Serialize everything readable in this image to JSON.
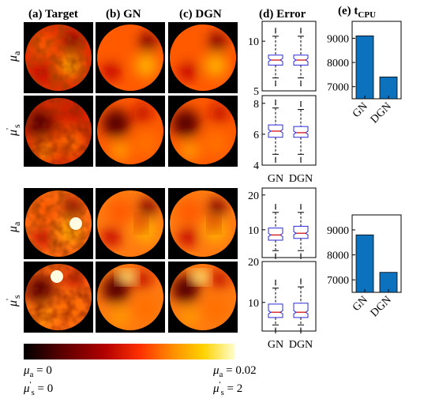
{
  "panels": {
    "target": "(a) Target",
    "gn": "(b) GN",
    "dgn": "(c) DGN",
    "error": "(d) Error",
    "tcpu_main": "(e) t",
    "tcpu_sub": "CPU"
  },
  "row_labels": {
    "mua": "μ",
    "mua_sub": "a",
    "mus": "μ",
    "mus_prime": "'",
    "mus_sub": "s"
  },
  "colorbar": {
    "min_mua": "μ",
    "min_mua_sub": "a",
    "min_mua_val": " = 0",
    "min_mus": "μ",
    "min_mus_prime": "'",
    "min_mus_sub": "s",
    "min_mus_val": " = 0",
    "max_mua": "μ",
    "max_mua_sub": "a",
    "max_mua_val": " = 0.02",
    "max_mus": "μ",
    "max_mus_prime": "'",
    "max_mus_sub": "s",
    "max_mus_val": " = 2",
    "colors": [
      "#000000",
      "#5a0000",
      "#b00000",
      "#ff3000",
      "#ff8c00",
      "#ffd200",
      "#ffffd0"
    ]
  },
  "chart_data": [
    {
      "type": "boxplot",
      "panel": "(d) Error top, μa",
      "categories": [
        "GN",
        "DGN"
      ],
      "ylim": [
        5,
        12
      ],
      "yticks": [
        5,
        10
      ],
      "series": [
        {
          "values": {
            "min": 6.3,
            "q1": 7.6,
            "median": 8.1,
            "q3": 8.6,
            "max": 10.5
          }
        },
        {
          "values": {
            "min": 6.3,
            "q1": 7.6,
            "median": 8.1,
            "q3": 8.6,
            "max": 10.5
          }
        }
      ]
    },
    {
      "type": "boxplot",
      "panel": "(d) Error top, μ's",
      "categories": [
        "GN",
        "DGN"
      ],
      "ylim": [
        4,
        8.5
      ],
      "yticks": [
        4,
        6,
        8
      ],
      "series": [
        {
          "values": {
            "min": 4.7,
            "q1": 5.8,
            "median": 6.2,
            "q3": 6.6,
            "max": 7.7
          }
        },
        {
          "values": {
            "min": 4.7,
            "q1": 5.8,
            "median": 6.1,
            "q3": 6.5,
            "max": 7.6
          }
        }
      ]
    },
    {
      "type": "boxplot",
      "panel": "(d) Error bottom, μa",
      "categories": [
        "GN",
        "DGN"
      ],
      "ylim": [
        2,
        22
      ],
      "yticks": [
        10,
        20
      ],
      "series": [
        {
          "values": {
            "min": 4.0,
            "q1": 7.0,
            "median": 8.5,
            "q3": 10.5,
            "max": 15.0
          }
        },
        {
          "values": {
            "min": 4.0,
            "q1": 7.5,
            "median": 9.0,
            "q3": 11.0,
            "max": 15.0
          }
        }
      ]
    },
    {
      "type": "boxplot",
      "panel": "(d) Error bottom, μ's",
      "categories": [
        "GN",
        "DGN"
      ],
      "ylim": [
        3,
        20
      ],
      "yticks": [
        10,
        20
      ],
      "series": [
        {
          "values": {
            "min": 4.5,
            "q1": 6.3,
            "median": 7.6,
            "q3": 9.6,
            "max": 13.5
          }
        },
        {
          "values": {
            "min": 4.5,
            "q1": 6.3,
            "median": 7.6,
            "q3": 9.8,
            "max": 13.8
          }
        }
      ]
    },
    {
      "type": "bar",
      "panel": "(e) tCPU top",
      "categories": [
        "GN",
        "DGN"
      ],
      "values": [
        9100,
        7400
      ],
      "ylim": [
        6500,
        9700
      ],
      "yticks": [
        7000,
        8000,
        9000
      ]
    },
    {
      "type": "bar",
      "panel": "(e) tCPU bottom",
      "categories": [
        "GN",
        "DGN"
      ],
      "values": [
        8800,
        7300
      ],
      "ylim": [
        6500,
        9600
      ],
      "yticks": [
        7000,
        8000,
        9000
      ]
    }
  ]
}
